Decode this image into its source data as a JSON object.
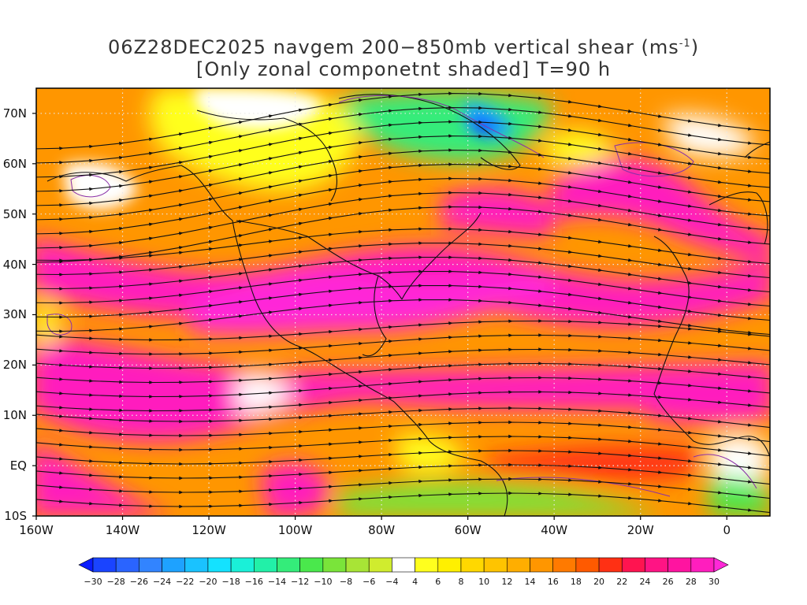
{
  "title": {
    "line1_prefix": "06Z28DEC2025 navgem 200−850mb vertical shear (ms",
    "line1_sup": "-1",
    "line1_suffix": ")",
    "line2": "[Only zonal componetnt shaded] T=90 h"
  },
  "map": {
    "projection": "latlon",
    "lon_range": [
      -160,
      10
    ],
    "lat_range": [
      -10,
      75
    ],
    "grid": "dotted",
    "lat_labels": [
      "70N",
      "60N",
      "50N",
      "40N",
      "30N",
      "20N",
      "10N",
      "EQ",
      "10S"
    ],
    "lat_values": [
      70,
      60,
      50,
      40,
      30,
      20,
      10,
      0,
      -10
    ],
    "lon_labels": [
      "160W",
      "140W",
      "120W",
      "100W",
      "80W",
      "60W",
      "40W",
      "20W",
      "0"
    ],
    "lon_values": [
      -160,
      -140,
      -120,
      -100,
      -80,
      -60,
      -40,
      -20,
      0
    ]
  },
  "colorbar": {
    "labels": [
      "-30",
      "-28",
      "-26",
      "-24",
      "-22",
      "-20",
      "-18",
      "-16",
      "-14",
      "-12",
      "-10",
      "-8",
      "-6",
      "-4",
      "4",
      "6",
      "8",
      "10",
      "12",
      "14",
      "16",
      "18",
      "20",
      "22",
      "24",
      "26",
      "28",
      "30"
    ],
    "colors": [
      "#0a1cff",
      "#1a44ff",
      "#2a64ff",
      "#3284ff",
      "#1ea2ff",
      "#1ac2ff",
      "#14e2ff",
      "#1af0d8",
      "#22f0a8",
      "#34ec7a",
      "#4ae84c",
      "#7ae43a",
      "#a8e436",
      "#d0ec2e",
      "#ffffff",
      "#ffff1e",
      "#fff000",
      "#ffd800",
      "#ffc400",
      "#ffae00",
      "#ff9600",
      "#ff7a00",
      "#ff5a00",
      "#ff3014",
      "#ff1450",
      "#ff1484",
      "#ff14a0",
      "#ff1ebe",
      "#ff28d8"
    ]
  }
}
